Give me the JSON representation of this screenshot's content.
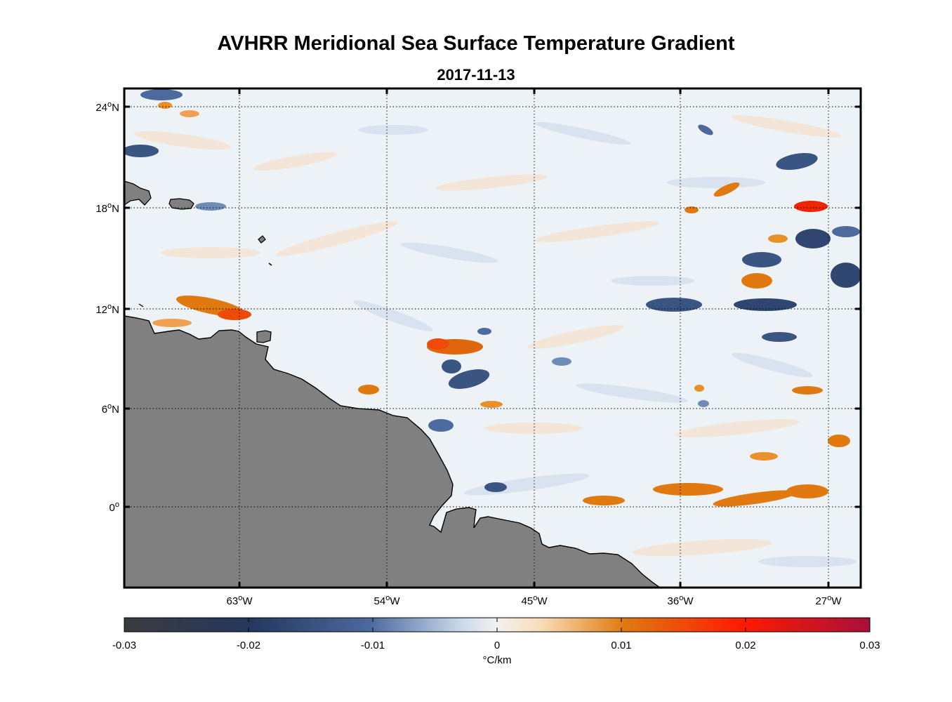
{
  "title": "AVHRR Meridional Sea Surface Temperature Gradient",
  "subtitle": "2017-11-13",
  "map": {
    "lat_ticks": [
      {
        "deg": "24",
        "hemi": "N"
      },
      {
        "deg": "18",
        "hemi": "N"
      },
      {
        "deg": "12",
        "hemi": "N"
      },
      {
        "deg": "6",
        "hemi": "N"
      },
      {
        "deg": "0",
        "hemi": ""
      }
    ],
    "lon_ticks": [
      {
        "deg": "63",
        "hemi": "W"
      },
      {
        "deg": "54",
        "hemi": "W"
      },
      {
        "deg": "45",
        "hemi": "W"
      },
      {
        "deg": "36",
        "hemi": "W"
      },
      {
        "deg": "27",
        "hemi": "W"
      }
    ],
    "land_color": "#808080",
    "grid": true
  },
  "colorbar": {
    "ticks": [
      "-0.03",
      "-0.02",
      "-0.01",
      "0",
      "0.01",
      "0.02",
      "0.03"
    ],
    "unit": "°C/km",
    "colors": [
      "#3a3a3e",
      "#24385e",
      "#4c6a9e",
      "#c8d8ea",
      "#f2f2f0",
      "#f8dcb6",
      "#e07a10",
      "#ff1a00",
      "#a8103a"
    ]
  }
}
